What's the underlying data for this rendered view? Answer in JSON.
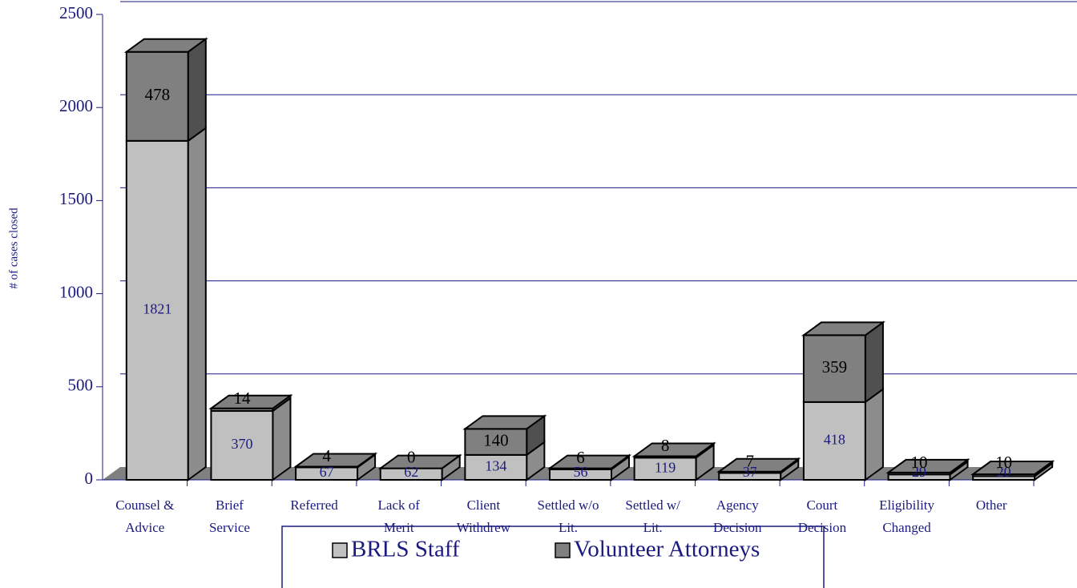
{
  "chart_data": {
    "type": "bar3d_stacked",
    "y_label": "# of cases closed",
    "categories": [
      [
        "Counsel &",
        "Advice"
      ],
      [
        "Brief",
        "Service"
      ],
      [
        "Referred"
      ],
      [
        "Lack of",
        "Merit"
      ],
      [
        "Client",
        "Withdrew"
      ],
      [
        "Settled w/o",
        "Lit."
      ],
      [
        "Settled w/",
        "Lit."
      ],
      [
        "Agency",
        "Decision"
      ],
      [
        "Court",
        "Decision"
      ],
      [
        "Eligibility",
        "Changed"
      ],
      [
        "Other"
      ]
    ],
    "series": [
      {
        "name": "BRLS Staff",
        "color": "#c0c0c0",
        "side": "#8c8c8c",
        "label_color": "#1a1a80",
        "values": [
          1821,
          370,
          67,
          62,
          134,
          56,
          119,
          37,
          418,
          29,
          20
        ]
      },
      {
        "name": "Volunteer Attorneys",
        "color": "#808080",
        "side": "#505050",
        "label_color": "#000000",
        "values": [
          478,
          14,
          4,
          0,
          140,
          6,
          8,
          7,
          359,
          10,
          10
        ]
      }
    ],
    "ylim": [
      0,
      2500
    ],
    "yticks": [
      0,
      500,
      1000,
      1500,
      2000,
      2500
    ],
    "grid": true,
    "legend": "bottom"
  }
}
